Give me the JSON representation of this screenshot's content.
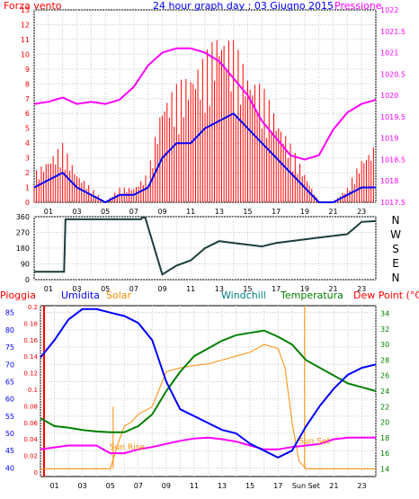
{
  "chart_data": [
    {
      "type": "line",
      "title": "24 hour graph day : 03 Giugno 2015",
      "left_label": "Forza vento",
      "right_label": "Pressione",
      "colors": {
        "wind": "#ff0000",
        "avg_wind": "#0000ff",
        "pressure": "#ff00ff",
        "text_wind": "#ff0000",
        "text_title": "#0000ff"
      },
      "x_ticks": [
        "01",
        "03",
        "05",
        "07",
        "09",
        "11",
        "13",
        "15",
        "17",
        "19",
        "21",
        "23"
      ],
      "y_left_ticks": [
        "13",
        "12",
        "11",
        "10",
        "9",
        "8",
        "7",
        "6",
        "5",
        "4",
        "3",
        "2",
        "1",
        "0"
      ],
      "y_right_ticks": [
        "1022",
        "1021.5",
        "1021",
        "1020.5",
        "1020",
        "1019.5",
        "1019",
        "1018.5",
        "1018",
        "1017.5"
      ],
      "ylim_left": [
        0,
        13
      ],
      "ylim_right": [
        1017.5,
        1022
      ],
      "pressure": {
        "x": [
          0,
          1,
          2,
          3,
          4,
          5,
          6,
          7,
          8,
          9,
          10,
          11,
          12,
          13,
          14,
          15,
          16,
          17,
          18,
          19,
          20,
          21,
          22,
          23,
          24
        ],
        "y": [
          1019.8,
          1019.85,
          1019.95,
          1019.8,
          1019.85,
          1019.8,
          1019.9,
          1020.2,
          1020.7,
          1021.0,
          1021.1,
          1021.1,
          1021.0,
          1020.8,
          1020.4,
          1020.0,
          1019.4,
          1019.0,
          1018.6,
          1018.5,
          1018.6,
          1019.2,
          1019.6,
          1019.8,
          1019.9
        ]
      },
      "wind_gust": {
        "x": [
          0,
          1,
          2,
          3,
          4,
          5,
          6,
          7,
          8,
          9,
          10,
          11,
          12,
          13,
          14,
          15,
          16,
          17,
          18,
          19,
          20,
          21,
          22,
          23,
          24
        ],
        "y": [
          2,
          3,
          4,
          2,
          1,
          0,
          1,
          1,
          2,
          7,
          8,
          9,
          10,
          12,
          11,
          9,
          8,
          6,
          4,
          2,
          0,
          0,
          1,
          3,
          4
        ]
      },
      "wind_avg": {
        "x": [
          0,
          1,
          2,
          3,
          4,
          5,
          6,
          7,
          8,
          9,
          10,
          11,
          12,
          13,
          14,
          15,
          16,
          17,
          18,
          19,
          20,
          21,
          22,
          23,
          24
        ],
        "y": [
          1,
          1.5,
          2,
          1,
          0.5,
          0,
          0.5,
          0.5,
          1,
          3,
          4,
          4,
          5,
          5.5,
          6,
          5,
          4,
          3,
          2,
          1,
          0,
          0,
          0.5,
          1,
          1
        ]
      }
    },
    {
      "type": "line",
      "y_ticks": [
        "360",
        "270",
        "180",
        "90",
        "0"
      ],
      "ylim": [
        0,
        360
      ],
      "right_labels": [
        "N",
        "W",
        "S",
        "E",
        "N"
      ],
      "x_ticks": [
        "01",
        "03",
        "05",
        "07",
        "09",
        "11",
        "13",
        "15",
        "17",
        "19",
        "21",
        "23"
      ],
      "colors": {
        "direction": "#1e3c3c"
      },
      "direction": {
        "x": [
          0,
          2.1,
          2.2,
          7.5,
          7.6,
          7.8,
          9,
          10,
          11,
          12,
          13,
          14,
          15,
          16,
          17,
          18,
          19,
          20,
          21,
          22,
          23,
          24
        ],
        "y": [
          45,
          45,
          345,
          345,
          355,
          355,
          30,
          80,
          110,
          180,
          220,
          210,
          200,
          190,
          210,
          220,
          230,
          240,
          250,
          260,
          330,
          335
        ]
      }
    },
    {
      "type": "line",
      "series_labels": [
        "Pioggia",
        "Umidita",
        "Solar",
        "Windchill",
        "Temperatura",
        "Dew Point (°C)"
      ],
      "colors": {
        "pioggia": "#ff0000",
        "umidita": "#0000ff",
        "solar": "#ff8c00",
        "windchill": "#008080",
        "temperatura": "#008000",
        "dewpoint": "#ff00ff"
      },
      "y_hum_ticks": [
        "85",
        "80",
        "75",
        "70",
        "65",
        "60",
        "55",
        "50",
        "45",
        "40"
      ],
      "y_rain_ticks": [
        "0.2",
        "0.18",
        "0.16",
        "0.14",
        "0.12",
        "0.1",
        "0.08",
        "0.06",
        "0.04",
        "0.02",
        "0"
      ],
      "y_temp_ticks": [
        "34",
        "32",
        "30",
        "28",
        "26",
        "24",
        "22",
        "20",
        "18",
        "16",
        "14"
      ],
      "x_ticks": [
        "01",
        "03",
        "05",
        "07",
        "09",
        "11",
        "13",
        "15",
        "17",
        "Sun Set",
        "21",
        "23"
      ],
      "annotations": [
        "Sun Rise",
        "Sun Set"
      ],
      "ylim_hum": [
        40,
        85
      ],
      "ylim_temp": [
        14,
        34
      ],
      "humidity": {
        "x": [
          0,
          1,
          2,
          3,
          4,
          5,
          6,
          7,
          8,
          9,
          10,
          11,
          12,
          13,
          14,
          15,
          16,
          17,
          18,
          19,
          20,
          21,
          22,
          23,
          24
        ],
        "y": [
          72,
          77,
          83,
          86,
          86,
          85,
          84,
          82,
          77,
          65,
          57,
          55,
          53,
          51,
          50,
          47,
          45,
          43,
          45,
          52,
          58,
          63,
          67,
          69,
          70
        ]
      },
      "temperature": {
        "x": [
          0,
          1,
          2,
          3,
          4,
          5,
          6,
          7,
          8,
          9,
          10,
          11,
          12,
          13,
          14,
          15,
          16,
          17,
          18,
          19,
          20,
          21,
          22,
          23,
          24
        ],
        "y": [
          20.5,
          19.5,
          19.3,
          19,
          18.8,
          18.7,
          18.7,
          19.5,
          21,
          24,
          26.5,
          28.5,
          29.5,
          30.5,
          31.2,
          31.5,
          31.8,
          31,
          30,
          28,
          27,
          26,
          25,
          24.5,
          24
        ]
      },
      "dewpoint": {
        "x": [
          0,
          2,
          4,
          5,
          6,
          7,
          8,
          9,
          10,
          11,
          12,
          13,
          14,
          15,
          16,
          17,
          18,
          19,
          20,
          21,
          22,
          23,
          24
        ],
        "y": [
          16.5,
          17,
          17,
          16,
          16,
          16.5,
          16.8,
          17.2,
          17.6,
          17.9,
          18,
          17.8,
          17.5,
          17,
          16.5,
          16.5,
          16.8,
          17,
          17.2,
          17.8,
          18,
          18,
          18
        ]
      },
      "solar": {
        "x": [
          0,
          5,
          5.5,
          6,
          6.5,
          7,
          8,
          9,
          10,
          11,
          12,
          13,
          14,
          15,
          16,
          17,
          17.5,
          18,
          18.5,
          19,
          19.5,
          24
        ],
        "y": [
          14,
          14,
          17,
          19.5,
          20,
          21,
          22,
          26.5,
          27,
          27.3,
          27.5,
          28,
          28.5,
          29,
          30,
          29.5,
          27,
          20,
          15,
          14,
          14,
          14
        ]
      }
    }
  ]
}
